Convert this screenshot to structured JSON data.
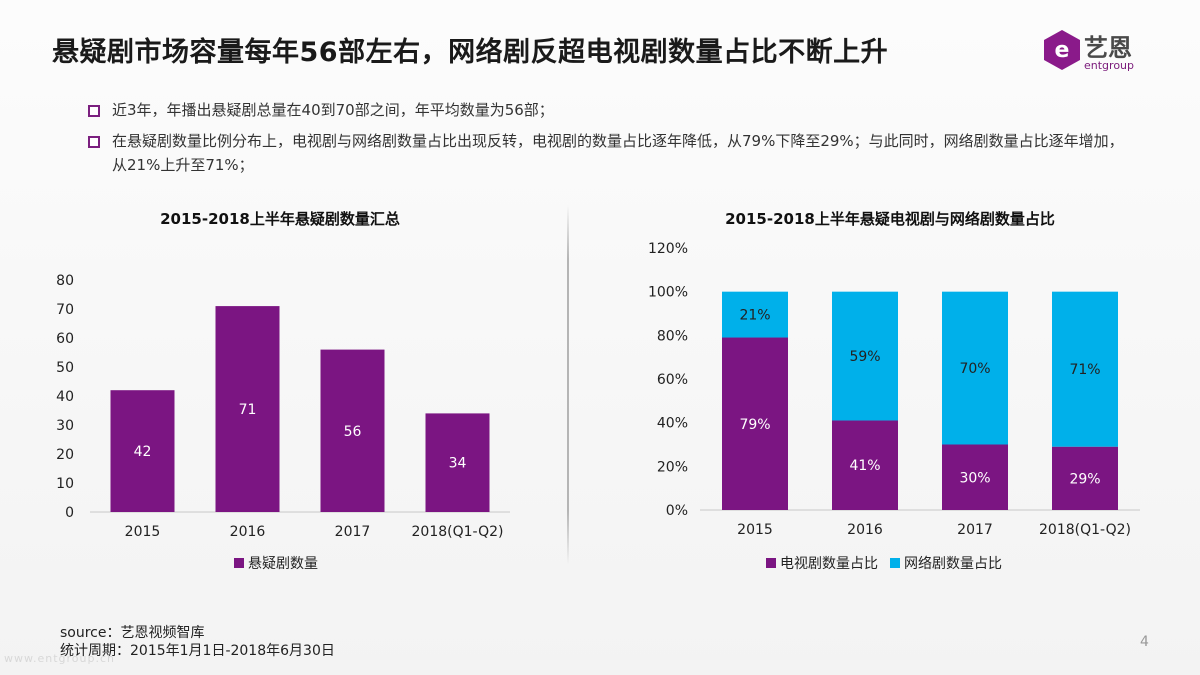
{
  "header": {
    "title": "悬疑剧市场容量每年56部左右，网络剧反超电视剧数量占比不断上升"
  },
  "logo": {
    "cn_text": "艺恩",
    "en_text": "entgroup"
  },
  "bullets": [
    "近3年，年播出悬疑剧总量在40到70部之间，年平均数量为56部；",
    "在悬疑剧数量比例分布上，电视剧与网络剧数量占比出现反转，电视剧的数量占比逐年降低，从79%下降至29%；与此同时，网络剧数量占比逐年增加，从21%上升至71%；"
  ],
  "footer": {
    "source": "source：艺恩视频智库",
    "period": "统计周期：2015年1月1日-2018年6月30日",
    "page_number": "4",
    "watermark": "www.entgroup.cn"
  },
  "colors": {
    "purple": "#7b1582",
    "cyan": "#00b0ea",
    "accent": "#7b1f7f"
  },
  "chart_data": [
    {
      "type": "bar",
      "title": "2015-2018上半年悬疑剧数量汇总",
      "categories": [
        "2015",
        "2016",
        "2017",
        "2018(Q1-Q2)"
      ],
      "values": [
        42,
        71,
        56,
        34
      ],
      "series_name": "悬疑剧数量",
      "ylim": [
        0,
        80
      ],
      "yticks": [
        "0",
        "10",
        "20",
        "30",
        "40",
        "50",
        "60",
        "70",
        "80"
      ],
      "legend": "bottom"
    },
    {
      "type": "bar",
      "stacked": true,
      "title": "2015-2018上半年悬疑电视剧与网络剧数量占比",
      "categories": [
        "2015",
        "2016",
        "2017",
        "2018(Q1-Q2)"
      ],
      "series": [
        {
          "name": "电视剧数量占比",
          "values": [
            79,
            41,
            30,
            29
          ],
          "labels": [
            "79%",
            "41%",
            "30%",
            "29%"
          ]
        },
        {
          "name": "网络剧数量占比",
          "values": [
            21,
            59,
            70,
            71
          ],
          "labels": [
            "21%",
            "59%",
            "70%",
            "71%"
          ]
        }
      ],
      "ylim": [
        0,
        120
      ],
      "yticks": [
        "0%",
        "20%",
        "40%",
        "60%",
        "80%",
        "100%",
        "120%"
      ],
      "legend": "bottom"
    }
  ]
}
